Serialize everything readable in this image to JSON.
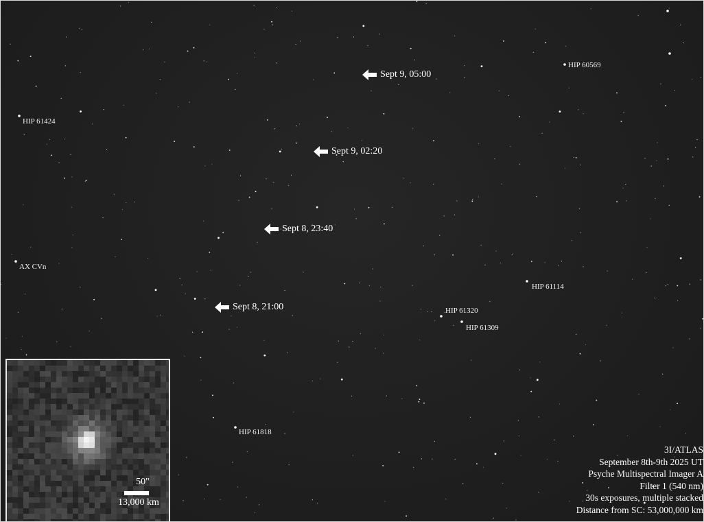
{
  "colors": {
    "sky": "#1f1f1f",
    "label": "#f2f2f2",
    "arrow": "#ffffff",
    "inset_border": "#e8e8e8"
  },
  "arrow_icon": "left-arrow-icon",
  "track_markers": [
    {
      "label": "Sept 9, 05:00"
    },
    {
      "label": "Sept 9, 02:20"
    },
    {
      "label": "Sept 8, 23:40"
    },
    {
      "label": "Sept 8, 21:00"
    }
  ],
  "star_labels": [
    {
      "label": "HIP 60569"
    },
    {
      "label": "HIP 61424"
    },
    {
      "label": "AX CVn"
    },
    {
      "label": "HIP 61114"
    },
    {
      "label": "HIP 61320"
    },
    {
      "label": "HIP 61309"
    },
    {
      "label": "HIP 61818"
    }
  ],
  "inset": {
    "scale_angle": "50\"",
    "scale_distance": "13,000 km"
  },
  "info": {
    "object": "3I/ATLAS",
    "dates": "September 8th-9th 2025 UT",
    "instrument": "Psyche Multispectral Imager A",
    "filter": "Filter 1 (540 nm)",
    "exposure": "30s exposures, multiple stacked",
    "distance": "Distance from SC: 53,000,000 km"
  }
}
